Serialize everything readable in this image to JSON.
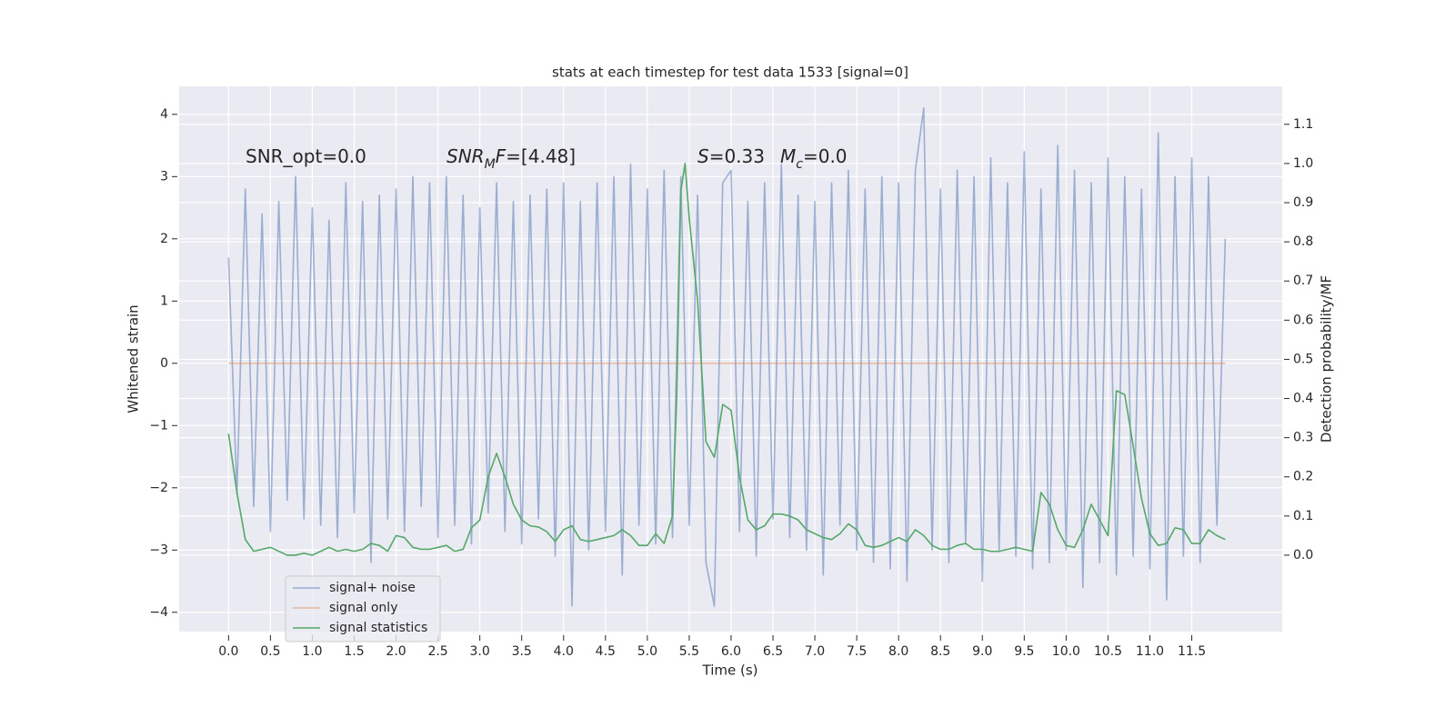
{
  "chart_data": {
    "type": "line",
    "title": "stats at each timestep for test data 1533 [signal=0]",
    "xlabel": "Time (s)",
    "ylabel": "Whitened strain",
    "y2label": "Detection probability/MF",
    "xlim": [
      -0.59,
      12.58
    ],
    "ylim": [
      -4.31,
      4.45
    ],
    "y2lim": [
      -0.195,
      1.197
    ],
    "xticks": [
      {
        "value": 0,
        "label": "0.0"
      },
      {
        "value": 0.5,
        "label": "0.5"
      },
      {
        "value": 1,
        "label": "1.0"
      },
      {
        "value": 1.5,
        "label": "1.5"
      },
      {
        "value": 2,
        "label": "2.0"
      },
      {
        "value": 2.5,
        "label": "2.5"
      },
      {
        "value": 3,
        "label": "3.0"
      },
      {
        "value": 3.5,
        "label": "3.5"
      },
      {
        "value": 4,
        "label": "4.0"
      },
      {
        "value": 4.5,
        "label": "4.5"
      },
      {
        "value": 5,
        "label": "5.0"
      },
      {
        "value": 5.5,
        "label": "5.5"
      },
      {
        "value": 6,
        "label": "6.0"
      },
      {
        "value": 6.5,
        "label": "6.5"
      },
      {
        "value": 7,
        "label": "7.0"
      },
      {
        "value": 7.5,
        "label": "7.5"
      },
      {
        "value": 8,
        "label": "8.0"
      },
      {
        "value": 8.5,
        "label": "8.5"
      },
      {
        "value": 9,
        "label": "9.0"
      },
      {
        "value": 9.5,
        "label": "9.5"
      },
      {
        "value": 10,
        "label": "10.0"
      },
      {
        "value": 10.5,
        "label": "10.5"
      },
      {
        "value": 11,
        "label": "11.0"
      },
      {
        "value": 11.5,
        "label": "11.5"
      }
    ],
    "yticks": [
      {
        "value": -4,
        "label": "−4"
      },
      {
        "value": -3,
        "label": "−3"
      },
      {
        "value": -2,
        "label": "−2"
      },
      {
        "value": -1,
        "label": "−1"
      },
      0,
      1,
      2,
      3,
      4
    ],
    "y2ticks": [
      {
        "value": 0,
        "label": "0.0"
      },
      {
        "value": 0.1,
        "label": "0.1"
      },
      {
        "value": 0.2,
        "label": "0.2"
      },
      {
        "value": 0.3,
        "label": "0.3"
      },
      {
        "value": 0.4,
        "label": "0.4"
      },
      {
        "value": 0.5,
        "label": "0.5"
      },
      {
        "value": 0.6,
        "label": "0.6"
      },
      {
        "value": 0.7,
        "label": "0.7"
      },
      {
        "value": 0.8,
        "label": "0.8"
      },
      {
        "value": 0.9,
        "label": "0.9"
      },
      {
        "value": 1,
        "label": "1.0"
      },
      {
        "value": 1.1,
        "label": "1.1"
      }
    ],
    "grid": true,
    "legend": "lower left",
    "annotations": [
      {
        "parts": [
          {
            "text": "SNR_opt=0.0"
          }
        ]
      },
      {
        "parts": [
          {
            "text": "SNR",
            "style": "italic"
          },
          {
            "text": "M",
            "style": "italic-sub"
          },
          {
            "text": "F",
            "style": "italic"
          },
          {
            "text": "=[4.48]"
          }
        ]
      },
      {
        "parts": [
          {
            "text": "S",
            "style": "italic"
          },
          {
            "text": "=0.33"
          }
        ]
      },
      {
        "parts": [
          {
            "text": "M",
            "style": "italic"
          },
          {
            "text": "c",
            "style": "italic-sub"
          },
          {
            "text": "=0.0"
          }
        ]
      }
    ],
    "series": [
      {
        "name": "signal+ noise",
        "color": "#4c72b0",
        "opacity": 0.5,
        "x": [
          0,
          0.1,
          0.2,
          0.3,
          0.4,
          0.5,
          0.6,
          0.7,
          0.8,
          0.9,
          1,
          1.1,
          1.2,
          1.3,
          1.4,
          1.5,
          1.6,
          1.7,
          1.8,
          1.9,
          2,
          2.1,
          2.2,
          2.3,
          2.4,
          2.5,
          2.6,
          2.7,
          2.8,
          2.9,
          3,
          3.1,
          3.2,
          3.3,
          3.4,
          3.5,
          3.6,
          3.7,
          3.8,
          3.9,
          4,
          4.1,
          4.2,
          4.3,
          4.4,
          4.5,
          4.6,
          4.7,
          4.8,
          4.9,
          5,
          5.1,
          5.2,
          5.3,
          5.4,
          5.5,
          5.6,
          5.7,
          5.8,
          5.9,
          6,
          6.1,
          6.2,
          6.3,
          6.4,
          6.5,
          6.6,
          6.7,
          6.8,
          6.9,
          7,
          7.1,
          7.2,
          7.3,
          7.4,
          7.5,
          7.6,
          7.7,
          7.8,
          7.9,
          8,
          8.1,
          8.2,
          8.3,
          8.4,
          8.5,
          8.6,
          8.7,
          8.8,
          8.9,
          9,
          9.1,
          9.2,
          9.3,
          9.4,
          9.5,
          9.6,
          9.7,
          9.8,
          9.9,
          10,
          10.1,
          10.2,
          10.3,
          10.4,
          10.5,
          10.6,
          10.7,
          10.8,
          10.9,
          11,
          11.1,
          11.2,
          11.3,
          11.4,
          11.5,
          11.6,
          11.7,
          11.8,
          11.9
        ],
        "values": [
          1.7,
          -2.1,
          2.8,
          -2.3,
          2.4,
          -2.7,
          2.6,
          -2.2,
          3.0,
          -2.5,
          2.5,
          -2.6,
          2.3,
          -2.8,
          2.9,
          -2.4,
          2.6,
          -3.2,
          2.7,
          -2.5,
          2.8,
          -2.7,
          3.0,
          -2.3,
          2.9,
          -2.8,
          3.0,
          -2.6,
          2.7,
          -2.9,
          2.5,
          -2.4,
          2.9,
          -2.7,
          2.6,
          -2.9,
          2.7,
          -2.5,
          2.8,
          -3.1,
          2.9,
          -3.9,
          2.6,
          -3.0,
          2.9,
          -2.7,
          3.0,
          -3.4,
          3.2,
          -2.6,
          2.8,
          -2.9,
          3.1,
          -2.8,
          3.0,
          -2.6,
          2.7,
          -3.2,
          -3.9,
          2.9,
          3.1,
          -2.7,
          2.6,
          -3.1,
          2.9,
          -2.5,
          3.2,
          -2.8,
          2.7,
          -3.0,
          2.6,
          -3.4,
          2.9,
          -2.6,
          3.1,
          -3.0,
          2.8,
          -3.2,
          3.0,
          -3.3,
          2.9,
          -3.5,
          3.1,
          4.1,
          -3.0,
          2.8,
          -3.2,
          3.1,
          -2.9,
          3.0,
          -3.5,
          3.3,
          -3.0,
          2.9,
          -3.1,
          3.4,
          -3.3,
          2.8,
          -3.2,
          3.5,
          -3.0,
          3.1,
          -3.6,
          2.9,
          -3.2,
          3.3,
          -3.4,
          3.0,
          -3.1,
          2.8,
          -3.3,
          3.7,
          -3.8,
          3.0,
          -3.1,
          3.3,
          -3.2,
          3.0,
          -2.6,
          2.0
        ]
      },
      {
        "name": "signal only",
        "color": "#dd8452",
        "opacity": 0.5,
        "x": [
          0,
          11.9
        ],
        "values": [
          0,
          0
        ]
      },
      {
        "name": "signal statistics",
        "color": "#55a868",
        "opacity": 1,
        "axis": "y2",
        "x": [
          0,
          0.1,
          0.2,
          0.3,
          0.4,
          0.5,
          0.6,
          0.7,
          0.8,
          0.9,
          1,
          1.1,
          1.2,
          1.3,
          1.4,
          1.5,
          1.6,
          1.7,
          1.8,
          1.9,
          2,
          2.1,
          2.2,
          2.3,
          2.4,
          2.5,
          2.6,
          2.7,
          2.8,
          2.9,
          3,
          3.1,
          3.2,
          3.3,
          3.4,
          3.5,
          3.6,
          3.7,
          3.8,
          3.9,
          4,
          4.1,
          4.2,
          4.3,
          4.4,
          4.5,
          4.6,
          4.7,
          4.8,
          4.9,
          5,
          5.1,
          5.2,
          5.3,
          5.35,
          5.4,
          5.45,
          5.5,
          5.6,
          5.7,
          5.8,
          5.9,
          6,
          6.1,
          6.2,
          6.3,
          6.4,
          6.5,
          6.6,
          6.7,
          6.8,
          6.9,
          7,
          7.1,
          7.2,
          7.3,
          7.4,
          7.5,
          7.6,
          7.7,
          7.8,
          7.9,
          8,
          8.1,
          8.2,
          8.3,
          8.4,
          8.5,
          8.6,
          8.7,
          8.8,
          8.9,
          9,
          9.1,
          9.2,
          9.3,
          9.4,
          9.5,
          9.6,
          9.7,
          9.8,
          9.9,
          10,
          10.1,
          10.2,
          10.3,
          10.4,
          10.5,
          10.6,
          10.7,
          10.8,
          10.9,
          11,
          11.1,
          11.2,
          11.3,
          11.4,
          11.5,
          11.6,
          11.7,
          11.8,
          11.9
        ],
        "values": [
          0.31,
          0.16,
          0.04,
          0.01,
          0.015,
          0.02,
          0.01,
          0.0,
          0.0,
          0.005,
          0.0,
          0.01,
          0.02,
          0.01,
          0.015,
          0.01,
          0.015,
          0.03,
          0.025,
          0.01,
          0.05,
          0.045,
          0.02,
          0.015,
          0.015,
          0.02,
          0.025,
          0.01,
          0.015,
          0.07,
          0.09,
          0.2,
          0.26,
          0.2,
          0.13,
          0.09,
          0.075,
          0.072,
          0.06,
          0.035,
          0.065,
          0.075,
          0.04,
          0.035,
          0.04,
          0.045,
          0.05,
          0.065,
          0.05,
          0.025,
          0.025,
          0.055,
          0.03,
          0.1,
          0.4,
          0.93,
          1.0,
          0.86,
          0.65,
          0.29,
          0.25,
          0.385,
          0.37,
          0.2,
          0.09,
          0.065,
          0.075,
          0.105,
          0.105,
          0.1,
          0.09,
          0.065,
          0.055,
          0.045,
          0.04,
          0.055,
          0.08,
          0.065,
          0.025,
          0.02,
          0.025,
          0.035,
          0.045,
          0.035,
          0.065,
          0.05,
          0.025,
          0.015,
          0.015,
          0.025,
          0.03,
          0.015,
          0.015,
          0.01,
          0.01,
          0.015,
          0.02,
          0.015,
          0.01,
          0.16,
          0.13,
          0.065,
          0.025,
          0.02,
          0.065,
          0.13,
          0.09,
          0.05,
          0.42,
          0.41,
          0.28,
          0.145,
          0.055,
          0.025,
          0.03,
          0.07,
          0.065,
          0.03,
          0.03,
          0.065,
          0.05,
          0.04
        ]
      }
    ]
  }
}
